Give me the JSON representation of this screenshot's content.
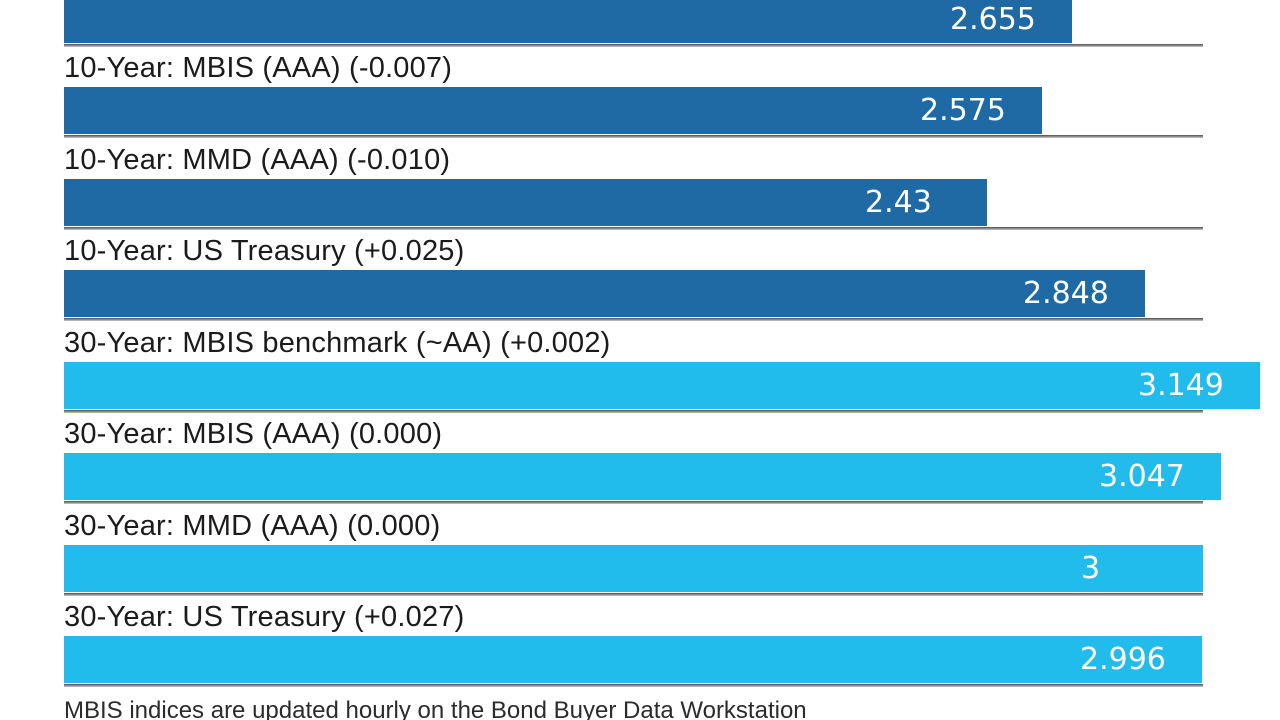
{
  "chart_data": {
    "type": "bar",
    "orientation": "horizontal",
    "title": "",
    "xlabel": "",
    "ylabel": "",
    "xlim": [
      0,
      3.0
    ],
    "grid": "per-row baseline only",
    "legend_position": "none",
    "categories": [
      "",
      "10-Year: MBIS (AAA) (-0.007)",
      "10-Year: MMD (AAA) (-0.010)",
      "10-Year: US Treasury (+0.025)",
      "30-Year: MBIS benchmark (~AA) (+0.002)",
      "30-Year: MBIS (AAA) (0.000)",
      "30-Year: MMD (AAA) (0.000)",
      "30-Year: US Treasury (+0.027)"
    ],
    "values": [
      2.655,
      2.575,
      2.43,
      2.848,
      3.149,
      3.047,
      3.0,
      2.996
    ],
    "value_labels": [
      "2.655",
      "2.575",
      "2.43",
      "2.848",
      "3.149",
      "3.047",
      "3",
      "2.996"
    ],
    "bar_color_keys": [
      "dark_blue",
      "dark_blue",
      "dark_blue",
      "dark_blue",
      "light_blue",
      "light_blue",
      "light_blue",
      "light_blue"
    ],
    "annotations": [
      "MBIS indices are updated hourly on the Bond Buyer Data Workstation"
    ]
  },
  "colors": {
    "dark_blue": "#1f6aa5",
    "light_blue": "#22bcec",
    "value_text": "#ffffff",
    "label_text": "#1b1b1b"
  },
  "footnote": "MBIS indices are updated hourly on the Bond Buyer Data Workstation"
}
